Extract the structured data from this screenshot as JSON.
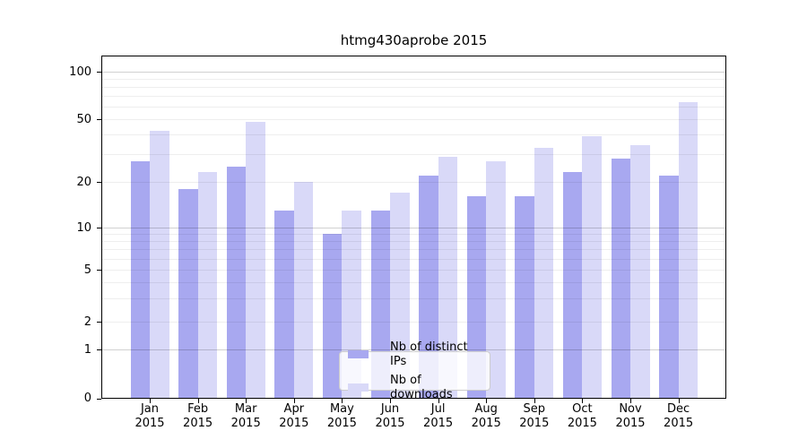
{
  "title": "htmg430aprobe 2015",
  "colors": {
    "distinct_ips": "#a8a8f0",
    "downloads": "#d9d9f8",
    "axis": "#000000",
    "background": "#ffffff",
    "legend_border": "#cccccc"
  },
  "y_axis": {
    "tick_values": [
      100,
      50,
      20,
      10,
      5,
      2,
      1,
      0
    ],
    "tick_labels": [
      "100",
      "50",
      "20",
      "10",
      "5",
      "2",
      "1",
      "0"
    ],
    "major_gridlines": [
      1,
      10,
      100
    ],
    "minor_gridlines": [
      2,
      3,
      4,
      5,
      6,
      7,
      8,
      9,
      20,
      30,
      40,
      50,
      60,
      70,
      80,
      90
    ]
  },
  "x_axis": {
    "months": [
      "Jan",
      "Feb",
      "Mar",
      "Apr",
      "May",
      "Jun",
      "Jul",
      "Aug",
      "Sep",
      "Oct",
      "Nov",
      "Dec"
    ],
    "year": "2015"
  },
  "legend": {
    "items": [
      {
        "label": "Nb of distinct IPs",
        "series_key": "distinct_ips"
      },
      {
        "label": "Nb of downloads",
        "series_key": "downloads"
      }
    ]
  },
  "chart_data": {
    "type": "bar",
    "title": "htmg430aprobe 2015",
    "categories": [
      "Jan 2015",
      "Feb 2015",
      "Mar 2015",
      "Apr 2015",
      "May 2015",
      "Jun 2015",
      "Jul 2015",
      "Aug 2015",
      "Sep 2015",
      "Oct 2015",
      "Nov 2015",
      "Dec 2015"
    ],
    "series": [
      {
        "name": "Nb of distinct IPs",
        "key": "distinct_ips",
        "color": "#a8a8f0",
        "values": [
          27,
          18,
          25,
          13,
          9,
          13,
          22,
          16,
          16,
          23,
          28,
          22
        ]
      },
      {
        "name": "Nb of downloads",
        "key": "downloads",
        "color": "#d9d9f8",
        "values": [
          42,
          23,
          48,
          20,
          13,
          17,
          29,
          27,
          33,
          39,
          34,
          64
        ]
      }
    ],
    "xlabel": "",
    "ylabel": "",
    "yscale": "symlog-like (linear 0-1, compressed log above)",
    "y_ticks": [
      0,
      1,
      2,
      5,
      10,
      20,
      50,
      100
    ],
    "ylim": [
      0,
      127
    ],
    "grid": true,
    "legend_position": "lower center"
  }
}
